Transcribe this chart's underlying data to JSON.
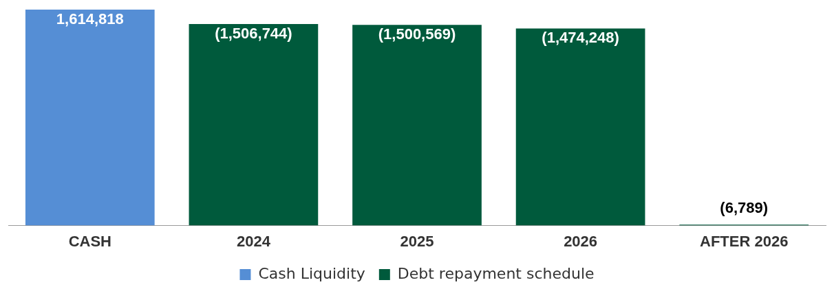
{
  "chart_data": {
    "type": "bar",
    "categories": [
      "CASH",
      "2024",
      "2025",
      "2026",
      "AFTER 2026"
    ],
    "series": [
      {
        "name": "Cash Liquidity",
        "color": "#558ed5",
        "values": [
          1614818,
          null,
          null,
          null,
          null
        ],
        "value_labels": [
          "1,614,818",
          null,
          null,
          null,
          null
        ]
      },
      {
        "name": "Debt repayment schedule",
        "color": "#005a3c",
        "values": [
          null,
          1506744,
          1500569,
          1474248,
          6789
        ],
        "value_labels": [
          null,
          "(1,506,744)",
          "(1,500,569)",
          "(1,474,248)",
          "(6,789)"
        ]
      }
    ],
    "ylim": [
      0,
      1614818
    ],
    "tick_labels": "x",
    "legend": "bottom",
    "grid": false
  }
}
